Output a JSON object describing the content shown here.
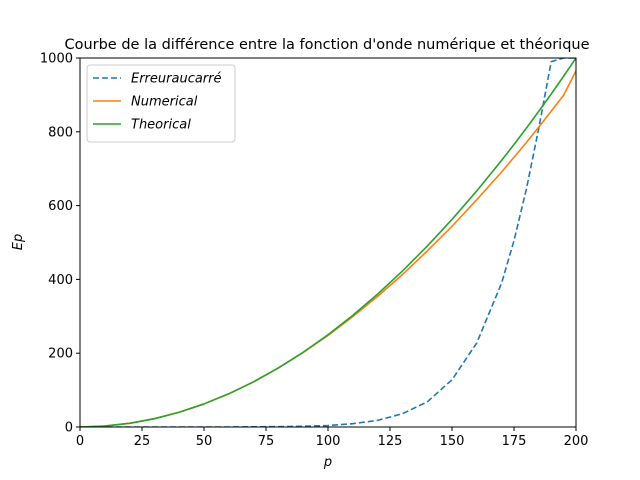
{
  "chart_data": {
    "type": "line",
    "title": "Courbe de la différence entre la fonction d'onde numérique et théorique",
    "xlabel": "p",
    "ylabel": "Ep",
    "xlim": [
      0,
      200
    ],
    "ylim": [
      0,
      1000
    ],
    "xticks": [
      0,
      25,
      50,
      75,
      100,
      125,
      150,
      175,
      200
    ],
    "yticks": [
      0,
      200,
      400,
      600,
      800,
      1000
    ],
    "grid": false,
    "legend_position": "upper-left",
    "x": [
      0,
      10,
      20,
      30,
      40,
      50,
      60,
      70,
      80,
      90,
      100,
      110,
      120,
      130,
      140,
      150,
      160,
      170,
      175,
      180,
      185,
      190,
      195,
      200
    ],
    "series": [
      {
        "name": "Erreuraucarré",
        "color": "#1f77b4",
        "style": "dashed",
        "values": [
          0,
          0,
          0,
          0,
          0,
          0,
          0,
          0.5,
          1,
          2,
          4,
          9,
          18,
          36,
          68,
          128,
          228,
          390,
          505,
          645,
          810,
          990,
          1000,
          1000
        ]
      },
      {
        "name": "Numerical",
        "color": "#ff7f0e",
        "style": "solid",
        "values": [
          0,
          2.5,
          10,
          22.5,
          40,
          62.5,
          90,
          122.5,
          160,
          202,
          248,
          299,
          354,
          413,
          477,
          544,
          616,
          691,
          731,
          771,
          813,
          856,
          899,
          965
        ]
      },
      {
        "name": "Theorical",
        "color": "#2ca02c",
        "style": "solid",
        "values": [
          0,
          2.5,
          10,
          22.5,
          40,
          62.5,
          90,
          122.5,
          160,
          202.5,
          250,
          302.5,
          360,
          422.5,
          490,
          562.5,
          640,
          722.5,
          765.6,
          810,
          855.6,
          902.5,
          950.6,
          1000
        ]
      }
    ]
  }
}
